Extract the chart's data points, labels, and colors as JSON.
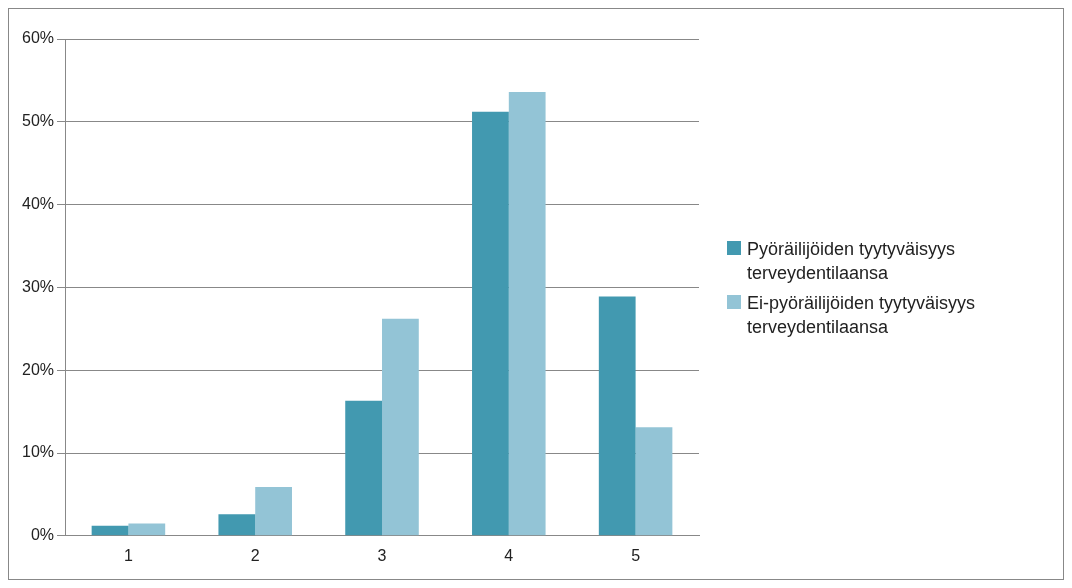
{
  "chart_data": {
    "type": "bar",
    "categories": [
      "1",
      "2",
      "3",
      "4",
      "5"
    ],
    "series": [
      {
        "name": "Pyöräilijöiden tyytyväisyys terveydentilaansa",
        "color": "#4299b0",
        "values": [
          1.2,
          2.6,
          16.3,
          51.2,
          28.9
        ]
      },
      {
        "name": "Ei-pyöräilijöiden tyytyväisyys terveydentilaansa",
        "color": "#93c4d6",
        "values": [
          1.5,
          5.9,
          26.2,
          53.6,
          13.1
        ]
      }
    ],
    "ylim": [
      0,
      60
    ],
    "yticks": [
      {
        "value": 0,
        "label": "0%"
      },
      {
        "value": 10,
        "label": "10%"
      },
      {
        "value": 20,
        "label": "20%"
      },
      {
        "value": 30,
        "label": "30%"
      },
      {
        "value": 40,
        "label": "40%"
      },
      {
        "value": 50,
        "label": "50%"
      },
      {
        "value": 60,
        "label": "60%"
      }
    ],
    "grid": "y",
    "legend": "right"
  }
}
